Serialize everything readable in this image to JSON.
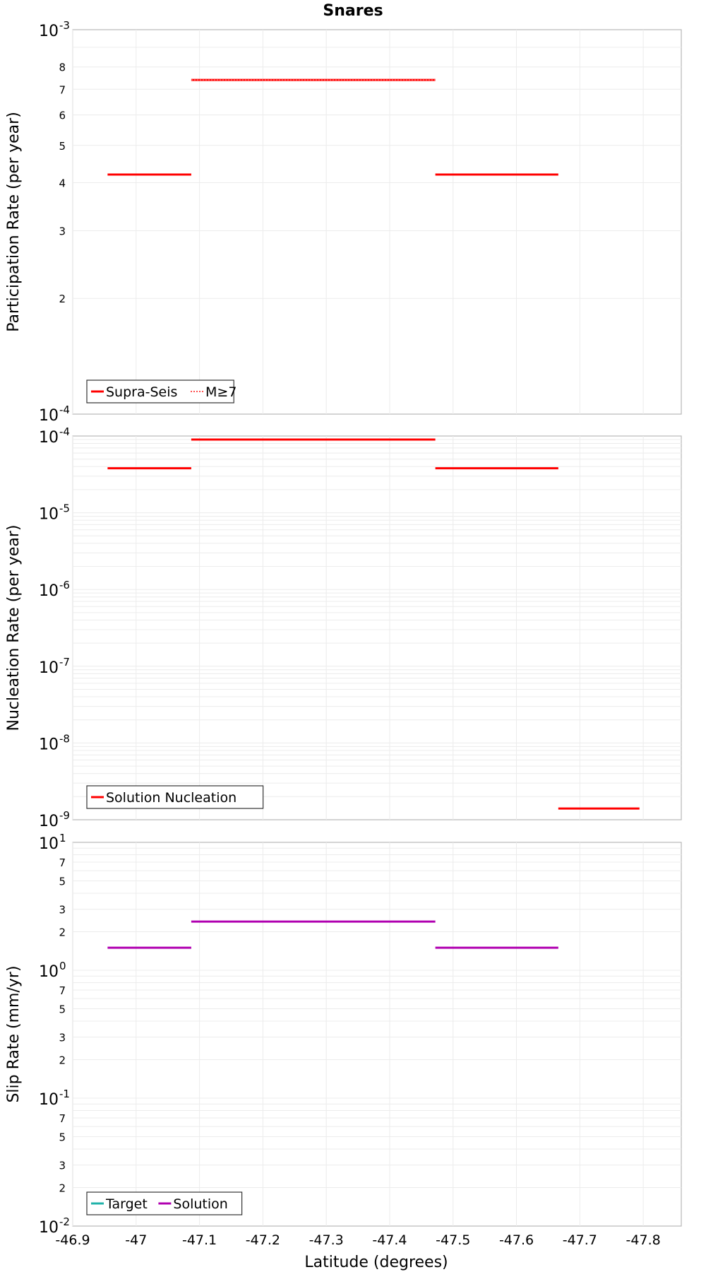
{
  "chart_data": [
    {
      "type": "line",
      "title": "Snares",
      "xlabel": "",
      "ylabel": "Participation Rate (per year)",
      "xlim": [
        -46.9,
        -47.86
      ],
      "ylim": [
        0.0001,
        0.001
      ],
      "yscale": "log",
      "grid": true,
      "legend_position": "bottom-left",
      "x_ticks": [
        "-46.9",
        "-47",
        "-47.1",
        "-47.2",
        "-47.3",
        "-47.4",
        "-47.5",
        "-47.6",
        "-47.7",
        "-47.8"
      ],
      "y_decade_ticks": [
        {
          "base": "10",
          "exp": "-4"
        },
        {
          "base": "10",
          "exp": "-3"
        }
      ],
      "y_minor_ticks": [
        "2",
        "3",
        "4",
        "5",
        "6",
        "7",
        "8"
      ],
      "series": [
        {
          "name": "Supra-Seis",
          "color": "#ff0000",
          "style": "solid",
          "segments": [
            {
              "x": [
                -46.955,
                -47.087
              ],
              "y": 0.00042
            },
            {
              "x": [
                -47.087,
                -47.472
              ],
              "y": 0.00074
            },
            {
              "x": [
                -47.472,
                -47.666
              ],
              "y": 0.00042
            }
          ]
        },
        {
          "name": "M≥7",
          "color": "#ff0000",
          "style": "dotted",
          "segments": [
            {
              "x": [
                -47.087,
                -47.472
              ],
              "y": 0.00074
            }
          ]
        }
      ]
    },
    {
      "type": "line",
      "title": "",
      "xlabel": "",
      "ylabel": "Nucleation Rate (per year)",
      "xlim": [
        -46.9,
        -47.86
      ],
      "ylim": [
        1e-09,
        0.0001
      ],
      "yscale": "log",
      "grid": true,
      "legend_position": "bottom-left",
      "y_decade_ticks": [
        {
          "base": "10",
          "exp": "-9"
        },
        {
          "base": "10",
          "exp": "-8"
        },
        {
          "base": "10",
          "exp": "-7"
        },
        {
          "base": "10",
          "exp": "-6"
        },
        {
          "base": "10",
          "exp": "-5"
        },
        {
          "base": "10",
          "exp": "-4"
        }
      ],
      "series": [
        {
          "name": "Solution Nucleation",
          "color": "#ff0000",
          "style": "solid",
          "segments": [
            {
              "x": [
                -46.955,
                -47.087
              ],
              "y": 3.8e-05
            },
            {
              "x": [
                -47.087,
                -47.472
              ],
              "y": 9e-05
            },
            {
              "x": [
                -47.472,
                -47.666
              ],
              "y": 3.8e-05
            },
            {
              "x": [
                -47.666,
                -47.794
              ],
              "y": 1.4e-09
            }
          ]
        }
      ]
    },
    {
      "type": "line",
      "title": "",
      "xlabel": "Latitude (degrees)",
      "ylabel": "Slip Rate (mm/yr)",
      "xlim": [
        -46.9,
        -47.86
      ],
      "ylim": [
        0.01,
        10
      ],
      "yscale": "log",
      "grid": true,
      "legend_position": "bottom-left",
      "x_ticks": [
        "-46.9",
        "-47",
        "-47.1",
        "-47.2",
        "-47.3",
        "-47.4",
        "-47.5",
        "-47.6",
        "-47.7",
        "-47.8"
      ],
      "y_decade_ticks": [
        {
          "base": "10",
          "exp": "-2"
        },
        {
          "base": "10",
          "exp": "-1"
        },
        {
          "base": "10",
          "exp": "0"
        },
        {
          "base": "10",
          "exp": "1"
        }
      ],
      "y_minor_ticks": [
        "2",
        "3",
        "5",
        "7"
      ],
      "series": [
        {
          "name": "Target",
          "color": "#20b2aa",
          "style": "solid",
          "segments": []
        },
        {
          "name": "Solution",
          "color": "#b000b0",
          "style": "solid",
          "segments": [
            {
              "x": [
                -46.955,
                -47.087
              ],
              "y": 1.5
            },
            {
              "x": [
                -47.087,
                -47.472
              ],
              "y": 2.4
            },
            {
              "x": [
                -47.472,
                -47.666
              ],
              "y": 1.5
            }
          ]
        }
      ]
    }
  ]
}
